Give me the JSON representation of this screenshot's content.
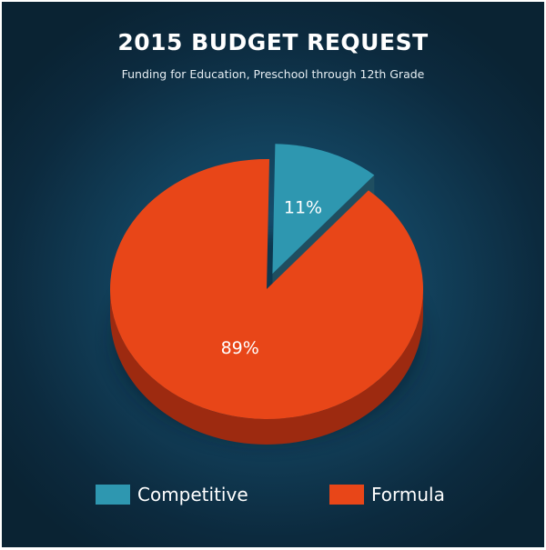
{
  "chart_data": {
    "type": "pie",
    "title": "2015 BUDGET REQUEST",
    "subtitle": "Funding for Education, Preschool through 12th Grade",
    "slices": [
      {
        "label": "Competitive",
        "value": 11,
        "display": "11%",
        "color": "#2e97b0",
        "side_color": "#1f4e60",
        "exploded": true
      },
      {
        "label": "Formula",
        "value": 89,
        "display": "89%",
        "color": "#e84618",
        "side_color": "#9d2a10",
        "exploded": false
      }
    ],
    "legend": {
      "position": "bottom",
      "entries": [
        {
          "label": "Competitive",
          "color": "#2e97b0"
        },
        {
          "label": "Formula",
          "color": "#e84618"
        }
      ]
    }
  }
}
